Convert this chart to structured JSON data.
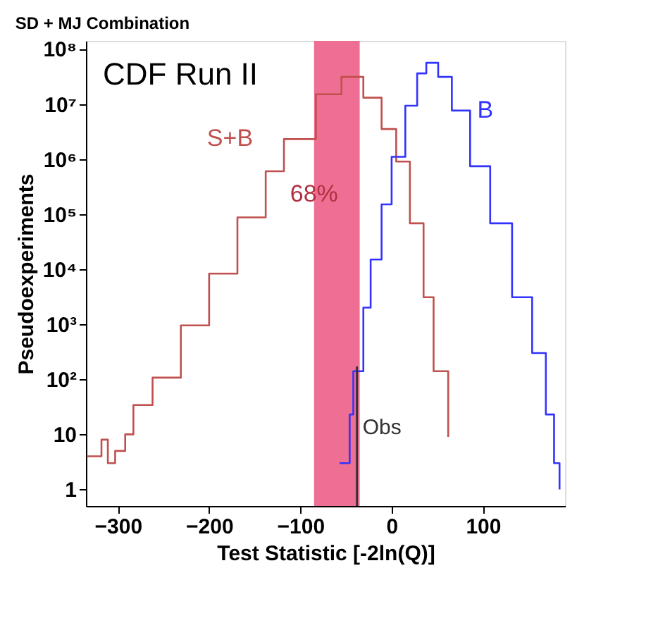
{
  "chart_data": {
    "type": "step",
    "title": "SD + MJ Combination",
    "xlabel": "Test Statistic [-2ln(Q)]",
    "ylabel": "Pseudoexperiments",
    "log": "y",
    "grid": false,
    "xlim": [
      -335,
      190
    ],
    "ylim": [
      0.5,
      140000000
    ],
    "xticks": [
      -300,
      -200,
      -100,
      0,
      100
    ],
    "yticks": [
      1,
      10,
      {
        "value": 100,
        "label": "10²"
      },
      {
        "value": 1000,
        "label": "10³"
      },
      {
        "value": 10000,
        "label": "10⁴"
      },
      {
        "value": 100000,
        "label": "10⁵"
      },
      {
        "value": 1000000,
        "label": "10⁶"
      },
      {
        "value": 10000000,
        "label": "10⁷"
      },
      {
        "value": 100000000,
        "label": "10⁸"
      }
    ],
    "series": [
      {
        "name": "S+B",
        "color": "#c0504d",
        "x": [
          -334,
          -318,
          -311,
          -303,
          -292,
          -283,
          -262,
          -231,
          -200,
          -169,
          -138,
          -118,
          -83,
          -55,
          -31,
          -11,
          5,
          20,
          35,
          46,
          62
        ],
        "values": [
          4,
          8,
          3,
          5,
          10,
          34,
          107,
          950,
          8300,
          87000,
          600000,
          2300000,
          15000000,
          31000000,
          13000000,
          3500000,
          900000,
          68000,
          3100,
          140,
          9
        ]
      },
      {
        "name": "B",
        "color": "#3333ff",
        "x": [
          -57,
          -46,
          -42,
          -31,
          -23,
          -11,
          0,
          15,
          28,
          38,
          51,
          66,
          86,
          108,
          132,
          154,
          169,
          178,
          184
        ],
        "values": [
          3,
          23,
          140,
          2000,
          15000,
          150000,
          1100000,
          9300000,
          36000000,
          56000000,
          31000000,
          7600000,
          740000,
          68000,
          3100,
          300,
          23,
          3,
          1
        ]
      }
    ],
    "bands": [
      {
        "axis": "x",
        "from": -85,
        "to": -35,
        "label": "68%",
        "color": "#ee6f93"
      }
    ],
    "ref_lines": [
      {
        "axis": "x",
        "value": -38,
        "label": "Obs",
        "color": "#333333"
      }
    ],
    "annotations": [
      "CDF Run II"
    ]
  }
}
